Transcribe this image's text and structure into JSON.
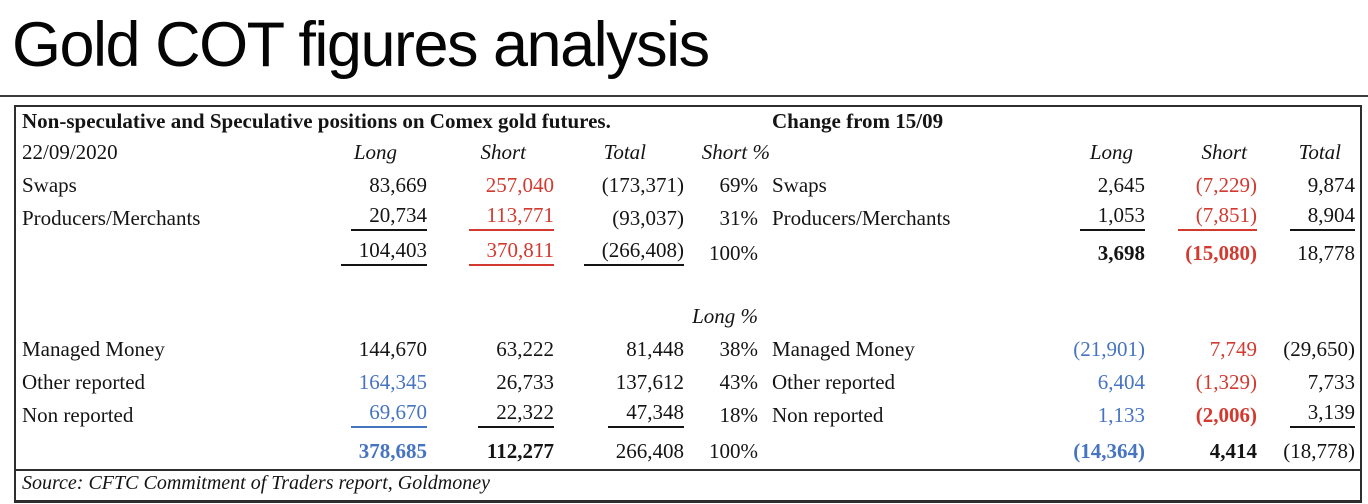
{
  "page_title": "Gold COT figures analysis",
  "colors": {
    "negative_red": "#d23a30",
    "highlight_blue": "#4674c1",
    "text": "#141414"
  },
  "table": {
    "left": {
      "title": "Non-speculative and Speculative positions on Comex gold futures.",
      "date": "22/09/2020",
      "headers": {
        "long": "Long",
        "short": "Short",
        "total": "Total",
        "short_pct": "Short %",
        "long_pct": "Long %"
      },
      "rows": {
        "swaps": {
          "label": "Swaps",
          "long": "83,669",
          "short": "257,040",
          "total": "(173,371)",
          "pct": "69%"
        },
        "producers": {
          "label": "Producers/Merchants",
          "long": "20,734",
          "short": "113,771",
          "total": "(93,037)",
          "pct": "31%"
        },
        "subtotal": {
          "long": "104,403",
          "short": "370,811",
          "total": "(266,408)",
          "pct": "100%"
        },
        "managed": {
          "label": "Managed Money",
          "long": "144,670",
          "short": "63,222",
          "total": "81,448",
          "pct": "38%"
        },
        "other": {
          "label": "Other reported",
          "long": "164,345",
          "short": "26,733",
          "total": "137,612",
          "pct": "43%"
        },
        "non": {
          "label": "Non reported",
          "long": "69,670",
          "short": "22,322",
          "total": "47,348",
          "pct": "18%"
        },
        "total": {
          "long": "378,685",
          "short": "112,277",
          "total": "266,408",
          "pct": "100%"
        }
      },
      "source": "Source: CFTC Commitment of Traders report, Goldmoney"
    },
    "right": {
      "title": "Change from 15/09",
      "headers": {
        "long": "Long",
        "short": "Short",
        "total": "Total"
      },
      "rows": {
        "swaps": {
          "label": "Swaps",
          "long": "2,645",
          "short": "(7,229)",
          "total": "9,874"
        },
        "producers": {
          "label": "Producers/Merchants",
          "long": "1,053",
          "short": "(7,851)",
          "total": "8,904"
        },
        "subtotal": {
          "long": "3,698",
          "short": "(15,080)",
          "total": "18,778"
        },
        "managed": {
          "label": "Managed Money",
          "long": "(21,901)",
          "short": "7,749",
          "total": "(29,650)"
        },
        "other": {
          "label": "Other reported",
          "long": "6,404",
          "short": "(1,329)",
          "total": "7,733"
        },
        "non": {
          "label": "Non reported",
          "long": "1,133",
          "short": "(2,006)",
          "total": "3,139"
        },
        "total": {
          "long": "(14,364)",
          "short": "4,414",
          "total": "(18,778)"
        }
      }
    }
  }
}
